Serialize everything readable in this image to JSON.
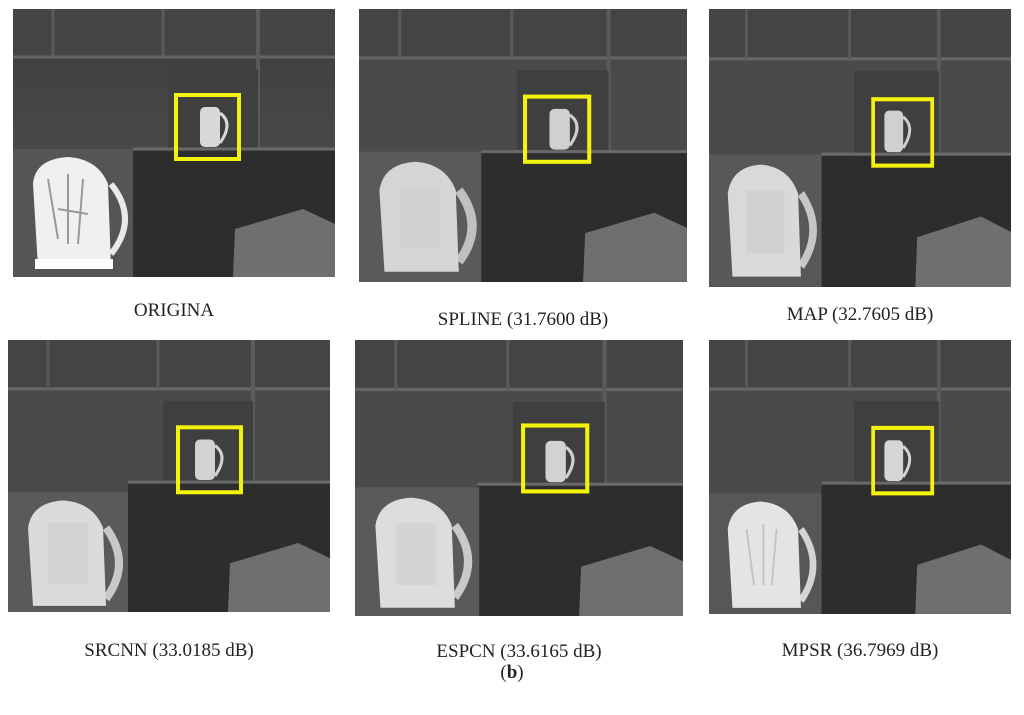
{
  "figure": {
    "panels": [
      {
        "id": "original",
        "caption": "ORIGINA",
        "inset": "sharp"
      },
      {
        "id": "spline",
        "caption": "SPLINE (31.7600 dB)",
        "inset": "blurry"
      },
      {
        "id": "map",
        "caption": "MAP (32.7605 dB)",
        "inset": "blurry"
      },
      {
        "id": "srcnn",
        "caption": "SRCNN (33.0185 dB)",
        "inset": "blurry"
      },
      {
        "id": "espcn",
        "caption": "ESPCN (33.6165 dB)",
        "inset": "blurry"
      },
      {
        "id": "mpsr",
        "caption": "MPSR (36.7969 dB)",
        "inset": "medium"
      }
    ],
    "sub_label": {
      "open": "(",
      "letter": "b",
      "close": ")"
    },
    "colors": {
      "highlight_box": "#f2f20a",
      "scene_dark": "#3a3a3a",
      "scene_wall": "#4d4d4d",
      "kettle": "#e6e6e6"
    }
  }
}
